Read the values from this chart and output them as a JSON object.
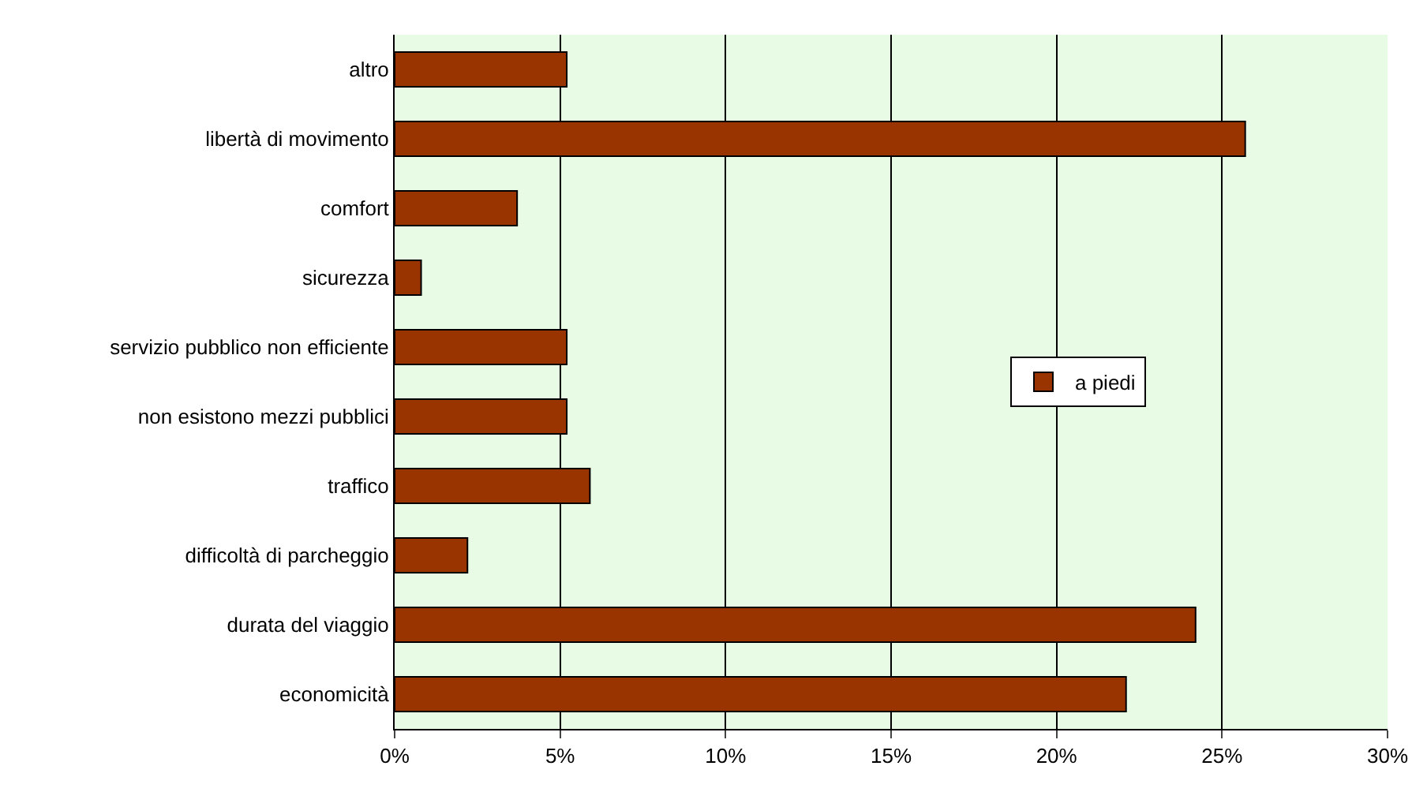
{
  "chart_data": {
    "type": "bar",
    "orientation": "horizontal",
    "categories": [
      "altro",
      "libertà di movimento",
      "comfort",
      "sicurezza",
      "servizio pubblico non efficiente",
      "non esistono mezzi pubblici",
      "traffico",
      "difficoltà di parcheggio",
      "durata del viaggio",
      "economicità"
    ],
    "series": [
      {
        "name": "a piedi",
        "color": "#993300",
        "values": [
          5.2,
          25.7,
          3.7,
          0.8,
          5.2,
          5.2,
          5.9,
          2.2,
          24.2,
          22.1
        ]
      }
    ],
    "xlim": [
      0,
      30
    ],
    "xticks": [
      {
        "value": 0,
        "label": "0%"
      },
      {
        "value": 5,
        "label": "5%"
      },
      {
        "value": 10,
        "label": "10%"
      },
      {
        "value": 15,
        "label": "15%"
      },
      {
        "value": 20,
        "label": "20%"
      },
      {
        "value": 25,
        "label": "25%"
      },
      {
        "value": 30,
        "label": "30%"
      }
    ],
    "grid": "x",
    "legend": "right"
  }
}
